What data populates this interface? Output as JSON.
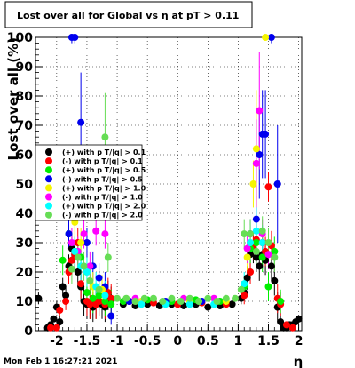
{
  "chart_data": {
    "type": "scatter",
    "title": "Lost over all for Global vs   η at pT > 0.11",
    "xlabel": "η",
    "ylabel": "Lost over all (%)",
    "xlim": [
      -2.35,
      2.05
    ],
    "ylim": [
      0,
      100
    ],
    "xticks": [
      "-2",
      "-1.5",
      "-1",
      "-0.5",
      "0",
      "0.5",
      "1",
      "1.5",
      "2"
    ],
    "yticks": [
      "0",
      "10",
      "20",
      "30",
      "40",
      "50",
      "60",
      "70",
      "80",
      "90",
      "100"
    ],
    "grid": true,
    "legend_placement": "middle-left",
    "footer": "Mon Feb  1 16:27:21 2021",
    "series": [
      {
        "name": "(+) with p T/|q| > 0.1",
        "color": "#000000",
        "points": [
          [
            -2.3,
            11,
            2
          ],
          [
            -2.15,
            1,
            1
          ],
          [
            -2.1,
            2,
            1
          ],
          [
            -2.05,
            4,
            1
          ],
          [
            -2.0,
            8,
            2
          ],
          [
            -1.95,
            3,
            2
          ],
          [
            -1.9,
            15,
            3
          ],
          [
            -1.85,
            12,
            3
          ],
          [
            -1.8,
            22,
            4
          ],
          [
            -1.75,
            28,
            5
          ],
          [
            -1.7,
            26,
            5
          ],
          [
            -1.65,
            20,
            5
          ],
          [
            -1.6,
            15,
            5
          ],
          [
            -1.55,
            10,
            5
          ],
          [
            -1.5,
            9,
            5
          ],
          [
            -1.45,
            9,
            5
          ],
          [
            -1.4,
            8,
            5
          ],
          [
            -1.35,
            9,
            5
          ],
          [
            -1.3,
            10,
            5
          ],
          [
            -1.25,
            9,
            5
          ],
          [
            -1.2,
            8,
            5
          ],
          [
            -1.15,
            12,
            5
          ],
          [
            -1.1,
            10,
            5
          ],
          [
            -0.9,
            9,
            1
          ],
          [
            -0.7,
            8.5,
            1
          ],
          [
            -0.5,
            9,
            1
          ],
          [
            -0.3,
            8.5,
            1
          ],
          [
            -0.1,
            9,
            1
          ],
          [
            0.1,
            8.5,
            1
          ],
          [
            0.3,
            9,
            1
          ],
          [
            0.5,
            8,
            1
          ],
          [
            0.7,
            8.5,
            1
          ],
          [
            0.9,
            9,
            1
          ],
          [
            1.05,
            11,
            2
          ],
          [
            1.1,
            13,
            3
          ],
          [
            1.15,
            18,
            4
          ],
          [
            1.2,
            26,
            5
          ],
          [
            1.25,
            28,
            5
          ],
          [
            1.3,
            25,
            5
          ],
          [
            1.35,
            22,
            5
          ],
          [
            1.4,
            26,
            5
          ],
          [
            1.45,
            24,
            5
          ],
          [
            1.5,
            26,
            5
          ],
          [
            1.55,
            22,
            5
          ],
          [
            1.6,
            17,
            5
          ],
          [
            1.65,
            8,
            5
          ],
          [
            1.7,
            3,
            3
          ],
          [
            1.75,
            1,
            1
          ],
          [
            1.8,
            1,
            1
          ],
          [
            1.85,
            2,
            1
          ],
          [
            1.9,
            2,
            1
          ],
          [
            1.95,
            3,
            1
          ],
          [
            2.0,
            4,
            1
          ]
        ]
      },
      {
        "name": "(-) with p T/|q| > 0.1",
        "color": "#ff0000",
        "points": [
          [
            -2.1,
            1,
            1
          ],
          [
            -2.0,
            1,
            1
          ],
          [
            -1.95,
            7,
            2
          ],
          [
            -1.85,
            10,
            3
          ],
          [
            -1.8,
            20,
            4
          ],
          [
            -1.75,
            24,
            5
          ],
          [
            -1.7,
            26,
            5
          ],
          [
            -1.65,
            30,
            5
          ],
          [
            -1.6,
            16,
            5
          ],
          [
            -1.5,
            10,
            5
          ],
          [
            -1.45,
            9,
            5
          ],
          [
            -1.35,
            9,
            5
          ],
          [
            -1.3,
            10,
            5
          ],
          [
            -1.2,
            9,
            5
          ],
          [
            -1.15,
            13,
            5
          ],
          [
            -1.1,
            11,
            5
          ],
          [
            -0.8,
            10,
            1
          ],
          [
            -0.4,
            9.5,
            1
          ],
          [
            0.0,
            9,
            1
          ],
          [
            0.4,
            9.5,
            1
          ],
          [
            0.8,
            9,
            1
          ],
          [
            1.1,
            12,
            3
          ],
          [
            1.2,
            20,
            4
          ],
          [
            1.25,
            29,
            5
          ],
          [
            1.3,
            31,
            5
          ],
          [
            1.4,
            30,
            5
          ],
          [
            1.45,
            27,
            5
          ],
          [
            1.5,
            49,
            5
          ],
          [
            1.55,
            29,
            5
          ],
          [
            1.65,
            11,
            5
          ],
          [
            1.7,
            9,
            4
          ],
          [
            1.8,
            2,
            1
          ],
          [
            1.9,
            1,
            1
          ]
        ]
      },
      {
        "name": "(+) with p T/|q| > 0.5",
        "color": "#00ee00",
        "points": [
          [
            -1.9,
            24,
            5
          ],
          [
            -1.8,
            33,
            5
          ],
          [
            -1.7,
            27,
            5
          ],
          [
            -1.6,
            25,
            5
          ],
          [
            -1.5,
            13,
            5
          ],
          [
            -1.4,
            11,
            5
          ],
          [
            -1.3,
            12,
            5
          ],
          [
            -1.2,
            10,
            5
          ],
          [
            -1.1,
            9,
            5
          ],
          [
            -0.9,
            10,
            1
          ],
          [
            -0.5,
            10.5,
            1
          ],
          [
            -0.1,
            10,
            1
          ],
          [
            0.3,
            10.5,
            1
          ],
          [
            0.7,
            10,
            1
          ],
          [
            1.1,
            15,
            3
          ],
          [
            1.2,
            28,
            5
          ],
          [
            1.3,
            30,
            5
          ],
          [
            1.4,
            25,
            5
          ],
          [
            1.5,
            15,
            5
          ],
          [
            1.6,
            27,
            5
          ],
          [
            1.7,
            10,
            4
          ]
        ]
      },
      {
        "name": "(-) with p T/|q| > 0.5",
        "color": "#0000ee",
        "points": [
          [
            -1.8,
            33,
            5
          ],
          [
            -1.75,
            100,
            2
          ],
          [
            -1.7,
            100,
            2
          ],
          [
            -1.6,
            71,
            17
          ],
          [
            -1.5,
            30,
            5
          ],
          [
            -1.4,
            22,
            5
          ],
          [
            -1.3,
            18,
            5
          ],
          [
            -1.2,
            15,
            5
          ],
          [
            -1.1,
            5,
            3
          ],
          [
            -0.8,
            10,
            1
          ],
          [
            -0.2,
            10,
            1
          ],
          [
            0.4,
            10,
            1
          ],
          [
            1.2,
            33,
            5
          ],
          [
            1.3,
            38,
            8
          ],
          [
            1.35,
            60,
            15
          ],
          [
            1.4,
            67,
            15
          ],
          [
            1.45,
            67,
            15
          ],
          [
            1.55,
            100,
            2
          ],
          [
            1.65,
            50,
            20
          ]
        ]
      },
      {
        "name": "(+) with p T/|q| > 1.0",
        "color": "#f5f500",
        "points": [
          [
            -1.7,
            37,
            5
          ],
          [
            -1.6,
            30,
            5
          ],
          [
            -1.5,
            20,
            5
          ],
          [
            -1.4,
            15,
            5
          ],
          [
            -1.25,
            14,
            5
          ],
          [
            -0.6,
            10,
            1
          ],
          [
            0.2,
            10,
            1
          ],
          [
            0.8,
            10,
            1
          ],
          [
            1.15,
            25,
            5
          ],
          [
            1.25,
            50,
            8
          ],
          [
            1.3,
            62,
            20
          ],
          [
            1.45,
            100,
            1
          ]
        ]
      },
      {
        "name": "(-) with p T/|q| > 1.0",
        "color": "#ff00ff",
        "points": [
          [
            -1.75,
            30,
            5
          ],
          [
            -1.65,
            27,
            5
          ],
          [
            -1.55,
            33,
            5
          ],
          [
            -1.45,
            22,
            5
          ],
          [
            -1.35,
            34,
            5
          ],
          [
            -1.2,
            33,
            5
          ],
          [
            -0.7,
            11,
            1
          ],
          [
            0.1,
            11,
            1
          ],
          [
            0.6,
            11,
            1
          ],
          [
            1.15,
            28,
            5
          ],
          [
            1.3,
            57,
            15
          ],
          [
            1.35,
            75,
            20
          ],
          [
            1.4,
            33,
            5
          ],
          [
            1.5,
            26,
            5
          ]
        ]
      },
      {
        "name": "(+) with p T/|q| > 2.0",
        "color": "#00ffff",
        "points": [
          [
            -1.7,
            27,
            5
          ],
          [
            -1.6,
            22,
            5
          ],
          [
            -1.5,
            20,
            5
          ],
          [
            -1.35,
            15,
            5
          ],
          [
            -1.2,
            12,
            5
          ],
          [
            -0.6,
            9,
            1
          ],
          [
            -0.2,
            9,
            1
          ],
          [
            0.2,
            9,
            1
          ],
          [
            0.6,
            9,
            1
          ],
          [
            1.1,
            16,
            4
          ],
          [
            1.2,
            30,
            6
          ],
          [
            1.3,
            34,
            8
          ],
          [
            1.4,
            30,
            6
          ]
        ]
      },
      {
        "name": "(-) with p T/|q| > 2.0",
        "color": "#66dd55",
        "points": [
          [
            -1.75,
            21,
            5
          ],
          [
            -1.65,
            25,
            5
          ],
          [
            -1.55,
            22,
            5
          ],
          [
            -1.45,
            17,
            5
          ],
          [
            -1.3,
            14,
            5
          ],
          [
            -1.2,
            66,
            15
          ],
          [
            -1.15,
            25,
            5
          ],
          [
            -1.0,
            11,
            1
          ],
          [
            -0.85,
            11,
            1
          ],
          [
            -0.7,
            10,
            1
          ],
          [
            -0.55,
            11,
            1
          ],
          [
            -0.4,
            11,
            1
          ],
          [
            -0.25,
            10,
            1
          ],
          [
            -0.1,
            11,
            1
          ],
          [
            0.05,
            10,
            1
          ],
          [
            0.2,
            11,
            1
          ],
          [
            0.35,
            10,
            1
          ],
          [
            0.5,
            11,
            1
          ],
          [
            0.65,
            10,
            1
          ],
          [
            0.8,
            11,
            1
          ],
          [
            0.95,
            11,
            1
          ],
          [
            1.05,
            14,
            3
          ],
          [
            1.1,
            33,
            5
          ],
          [
            1.2,
            33,
            5
          ],
          [
            1.3,
            27,
            5
          ],
          [
            1.4,
            34,
            5
          ],
          [
            1.5,
            30,
            5
          ],
          [
            1.6,
            25,
            5
          ]
        ]
      }
    ]
  }
}
